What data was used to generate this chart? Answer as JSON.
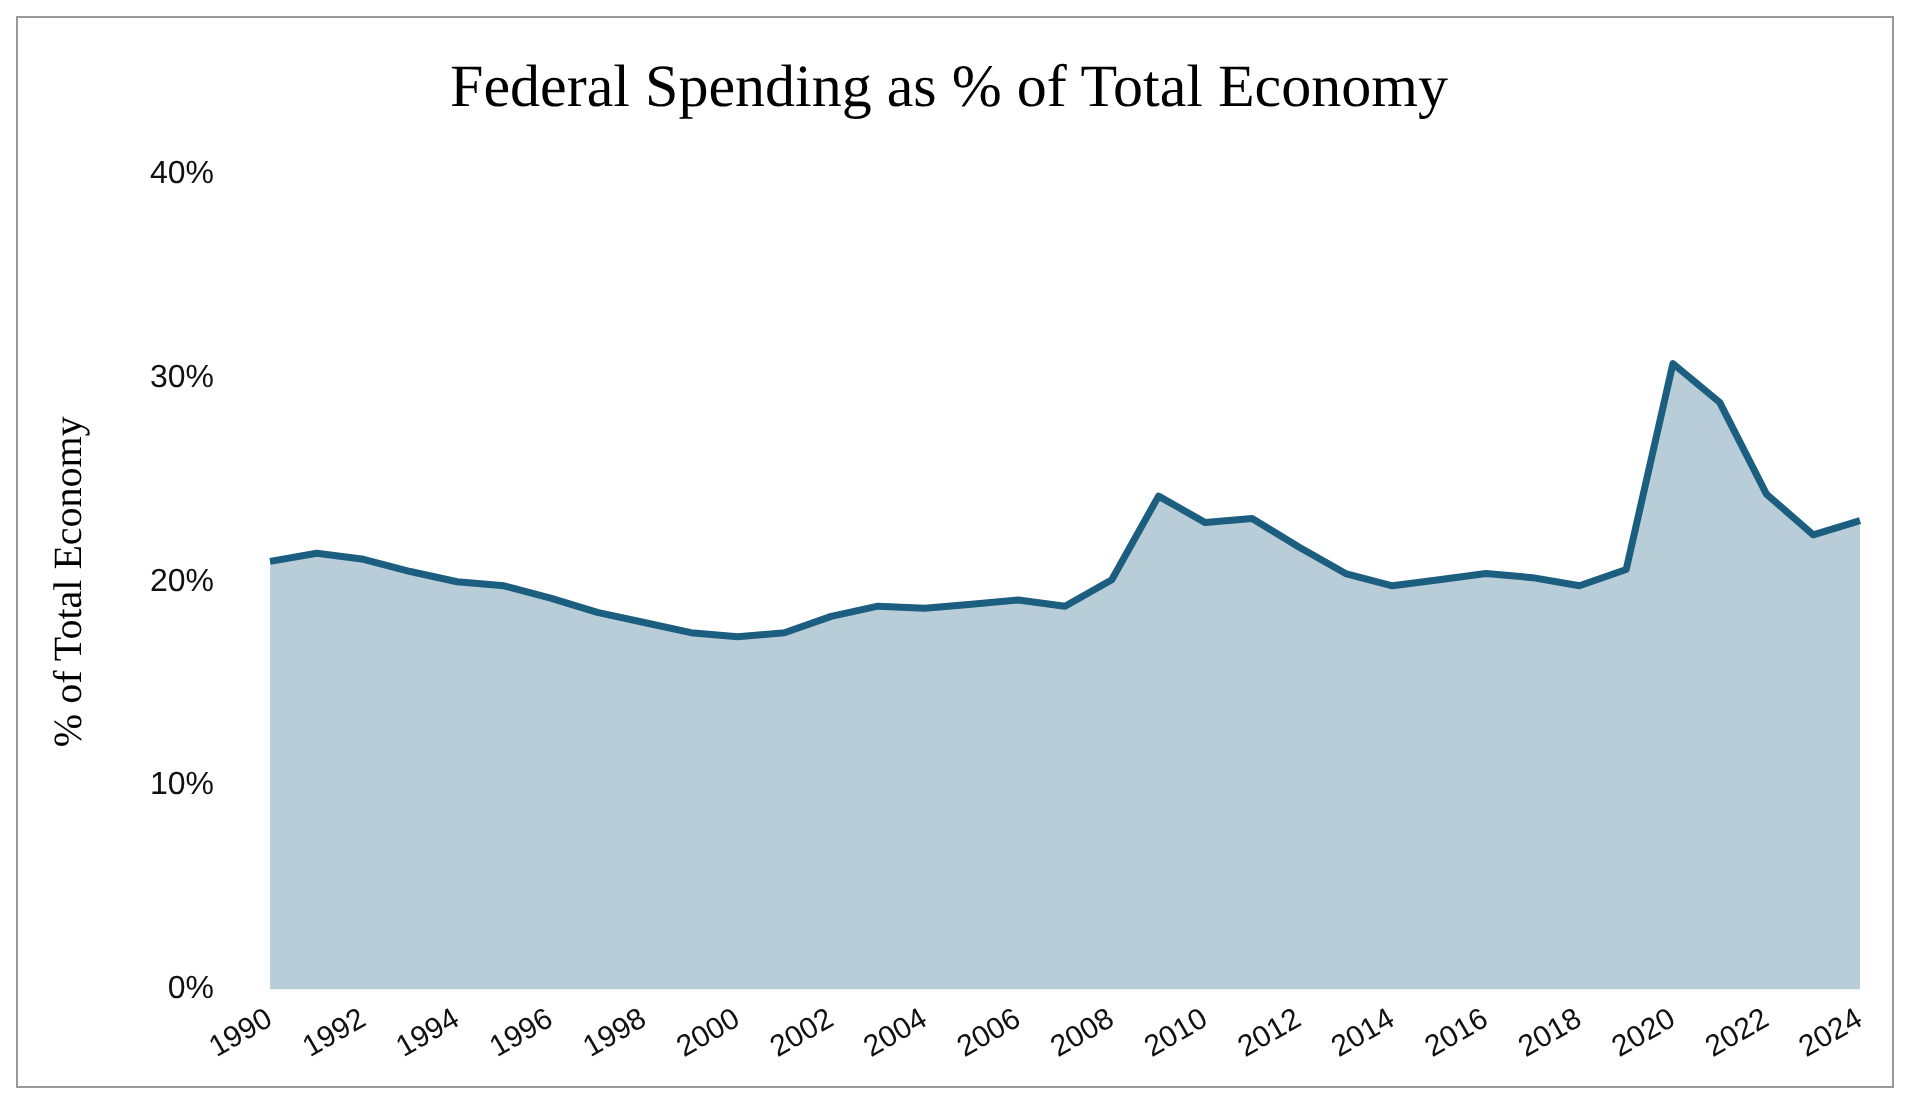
{
  "chart_data": {
    "type": "area",
    "title": "Federal Spending as % of Total Economy",
    "ylabel": "% of Total Economy",
    "categories": [
      "1990",
      null,
      "1992",
      null,
      "1994",
      null,
      "1996",
      null,
      "1998",
      null,
      "2000",
      null,
      "2002",
      null,
      "2004",
      null,
      "2006",
      null,
      "2008",
      null,
      "2010",
      null,
      "2012",
      null,
      "2014",
      null,
      "2016",
      null,
      "2018",
      null,
      "2020",
      null,
      "2022",
      null,
      "2024"
    ],
    "series": [
      {
        "color": "#1b5e80",
        "values": [
          21.0,
          21.4,
          21.1,
          20.5,
          20.0,
          19.8,
          19.2,
          18.5,
          18.0,
          17.5,
          17.3,
          17.5,
          18.3,
          18.8,
          18.7,
          18.9,
          19.1,
          18.8,
          20.1,
          24.2,
          22.9,
          23.1,
          21.7,
          20.4,
          19.8,
          20.1,
          20.4,
          20.2,
          19.8,
          20.6,
          30.7,
          28.8,
          24.3,
          22.3,
          23.0
        ]
      }
    ],
    "ylim": [
      0,
      40
    ],
    "yticks": [
      {
        "value": 0,
        "label": "0%"
      },
      {
        "value": 10,
        "label": "10%"
      },
      {
        "value": 20,
        "label": "20%"
      },
      {
        "value": 30,
        "label": "30%"
      },
      {
        "value": 40,
        "label": "40%"
      }
    ],
    "grid": false,
    "legend": false
  }
}
